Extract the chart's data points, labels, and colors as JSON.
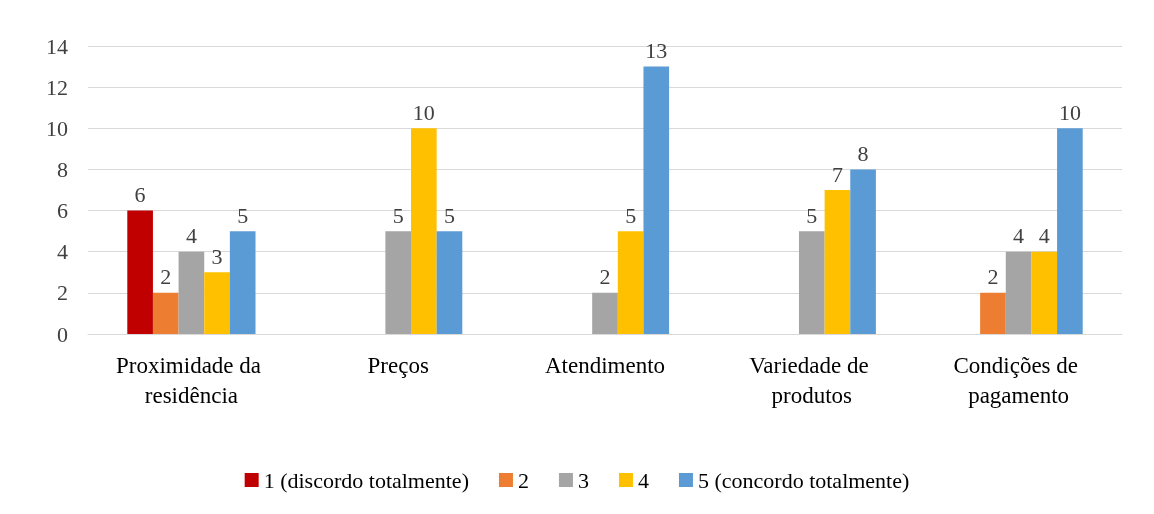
{
  "chart_data": {
    "type": "bar",
    "categories": [
      "Proximidade da residência",
      "Preços",
      "Atendimento",
      "Variedade de produtos",
      "Condições de pagamento"
    ],
    "series": [
      {
        "name": "1 (discordo totalmente)",
        "color": "#c00000",
        "values": [
          6,
          null,
          null,
          null,
          null
        ]
      },
      {
        "name": "2",
        "color": "#ed7d31",
        "values": [
          2,
          null,
          null,
          null,
          2
        ]
      },
      {
        "name": "3",
        "color": "#a5a5a5",
        "values": [
          4,
          5,
          2,
          5,
          4
        ]
      },
      {
        "name": "4",
        "color": "#ffc000",
        "values": [
          3,
          10,
          5,
          7,
          4
        ]
      },
      {
        "name": "5 (concordo totalmente)",
        "color": "#5b9bd5",
        "values": [
          5,
          5,
          13,
          8,
          10
        ]
      }
    ],
    "ylim": [
      0,
      14
    ],
    "yticks": [
      0,
      2,
      4,
      6,
      8,
      10,
      12,
      14
    ],
    "grid": "y",
    "legend": "bottom",
    "data_labels": true
  }
}
